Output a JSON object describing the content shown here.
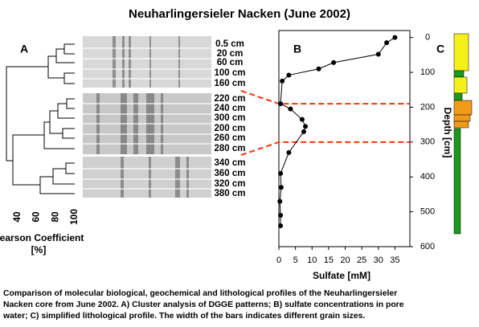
{
  "title": "Neuharlingersieler Nacken (June 2002)",
  "panel_a": {
    "label": "A",
    "lanes": [
      "0.5 cm",
      "20 cm",
      "60 cm",
      "100 cm",
      "160 cm",
      "220 cm",
      "240 cm",
      "300 cm",
      "200 cm",
      "260 cm",
      "280 cm",
      "340 cm",
      "360 cm",
      "320 cm",
      "380 cm"
    ],
    "xticks": [
      40,
      60,
      80,
      100
    ],
    "xlim": [
      25,
      100
    ],
    "xlabel": [
      "Pearson Coefficient",
      "[%]"
    ]
  },
  "chart_data": {
    "type": "line",
    "label": "B",
    "x": [
      35,
      32.5,
      30,
      16.5,
      12,
      3,
      1,
      0.5,
      3.5,
      7,
      8,
      7.5,
      3,
      0.5,
      0.7,
      0.3,
      0.5,
      0.5
    ],
    "values": [
      0,
      15,
      48,
      72,
      90,
      108,
      125,
      190,
      205,
      235,
      255,
      270,
      330,
      390,
      430,
      470,
      510,
      540
    ],
    "color": "#000000",
    "xlim": [
      0,
      39.5
    ],
    "xticks": [
      0,
      5,
      10,
      15,
      20,
      25,
      30,
      35
    ],
    "ylim": [
      -20,
      600
    ],
    "yticks": [
      0,
      100,
      200,
      300,
      400,
      500,
      600
    ],
    "y_inverted": true,
    "xlabel": "Sulfate [mM]",
    "ylabel": "Depth [cm]",
    "hlines": [
      190,
      300
    ],
    "hline_color": "#ff3300"
  },
  "panel_c": {
    "label": "C"
  },
  "caption": [
    "Comparison of molecular biological, geochemical and lithological profiles of the Neuharlingersieler",
    "Nacken core from June 2002. A) Cluster analysis of DGGE patterns; B) sulfate concentrations in pore",
    "water; C) simplified lithological profile. The width of the bars indicates different grain sizes."
  ]
}
